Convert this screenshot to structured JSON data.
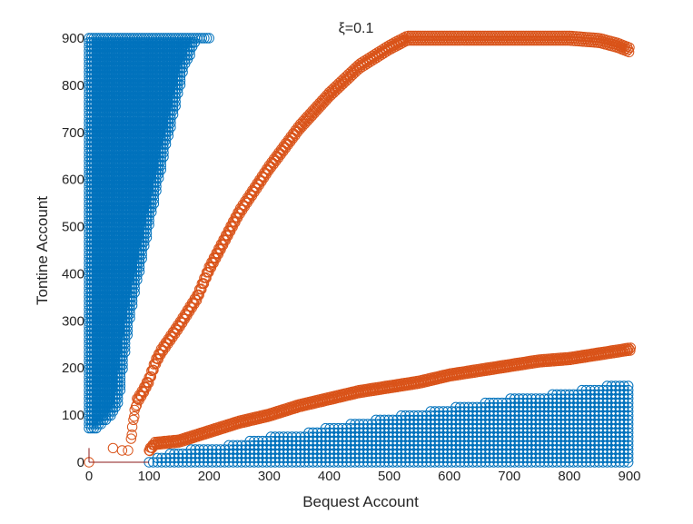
{
  "chart_data": {
    "type": "scatter",
    "title": "ξ=0.1",
    "xlabel": "Bequest Account",
    "ylabel": "Tontine Account",
    "xlim": [
      0,
      900
    ],
    "ylim": [
      0,
      900
    ],
    "xticks": [
      0,
      100,
      200,
      300,
      400,
      500,
      600,
      700,
      800,
      900
    ],
    "yticks": [
      0,
      100,
      200,
      300,
      400,
      500,
      600,
      700,
      800,
      900
    ],
    "grid": false,
    "legend": "none",
    "colors": {
      "blue": "#0072BD",
      "orange": "#D95319"
    },
    "series": [
      {
        "color": "#0072BD",
        "marker": "circle",
        "description_regions": [
          {
            "region": "upper-left band",
            "x_range": [
              0,
              200
            ],
            "y_range": [
              70,
              900
            ]
          },
          {
            "region": "lower-right band",
            "x_range": [
              100,
              900
            ],
            "y_range": [
              0,
              170
            ]
          }
        ],
        "upper_left_frontier": [
          [
            0,
            70
          ],
          [
            10,
            70
          ],
          [
            20,
            80
          ],
          [
            30,
            90
          ],
          [
            40,
            100
          ],
          [
            50,
            130
          ],
          [
            60,
            230
          ],
          [
            70,
            320
          ],
          [
            80,
            380
          ],
          [
            90,
            440
          ],
          [
            100,
            500
          ],
          [
            110,
            560
          ],
          [
            120,
            620
          ],
          [
            130,
            680
          ],
          [
            140,
            730
          ],
          [
            150,
            790
          ],
          [
            160,
            840
          ],
          [
            170,
            870
          ],
          [
            180,
            900
          ],
          [
            200,
            900
          ]
        ],
        "lower_right_frontier": [
          [
            100,
            0
          ],
          [
            120,
            15
          ],
          [
            150,
            25
          ],
          [
            200,
            30
          ],
          [
            250,
            40
          ],
          [
            300,
            55
          ],
          [
            350,
            60
          ],
          [
            400,
            75
          ],
          [
            450,
            85
          ],
          [
            500,
            95
          ],
          [
            550,
            105
          ],
          [
            600,
            115
          ],
          [
            650,
            125
          ],
          [
            700,
            135
          ],
          [
            750,
            140
          ],
          [
            800,
            150
          ],
          [
            850,
            160
          ],
          [
            900,
            170
          ]
        ]
      },
      {
        "color": "#D95319",
        "marker": "circle",
        "upper_curve": [
          [
            70,
            50
          ],
          [
            75,
            100
          ],
          [
            80,
            130
          ],
          [
            90,
            150
          ],
          [
            100,
            175
          ],
          [
            110,
            210
          ],
          [
            120,
            235
          ],
          [
            150,
            290
          ],
          [
            180,
            350
          ],
          [
            200,
            410
          ],
          [
            250,
            530
          ],
          [
            300,
            625
          ],
          [
            350,
            710
          ],
          [
            400,
            780
          ],
          [
            450,
            840
          ],
          [
            500,
            880
          ],
          [
            530,
            900
          ],
          [
            600,
            900
          ],
          [
            650,
            900
          ],
          [
            700,
            900
          ],
          [
            750,
            900
          ],
          [
            800,
            900
          ],
          [
            850,
            895
          ],
          [
            880,
            885
          ],
          [
            900,
            875
          ]
        ],
        "lower_curve": [
          [
            100,
            25
          ],
          [
            110,
            40
          ],
          [
            150,
            45
          ],
          [
            200,
            65
          ],
          [
            250,
            85
          ],
          [
            300,
            100
          ],
          [
            350,
            120
          ],
          [
            400,
            135
          ],
          [
            450,
            150
          ],
          [
            500,
            160
          ],
          [
            550,
            170
          ],
          [
            600,
            185
          ],
          [
            650,
            195
          ],
          [
            700,
            205
          ],
          [
            750,
            215
          ],
          [
            800,
            220
          ],
          [
            850,
            230
          ],
          [
            900,
            240
          ]
        ],
        "isolated_points": [
          [
            0,
            0
          ],
          [
            40,
            30
          ],
          [
            55,
            25
          ],
          [
            65,
            25
          ]
        ]
      }
    ]
  }
}
